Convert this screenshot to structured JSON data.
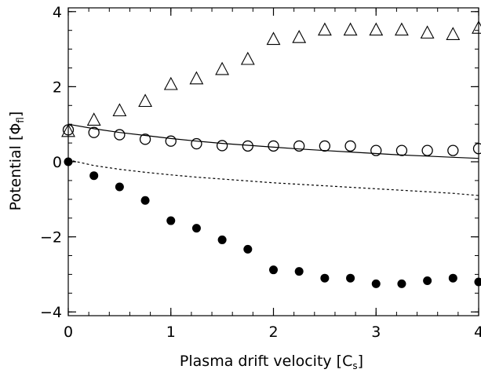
{
  "chart_data": {
    "type": "scatter",
    "xlabel": "Plasma drift velocity [C",
    "xlabel_sub": "s",
    "xlabel_end": "]",
    "ylabel": "Potential [Φ",
    "ylabel_sub": "fl",
    "ylabel_end": "]",
    "xlim": [
      0,
      4
    ],
    "ylim": [
      -4.1,
      4.1
    ],
    "x_ticks": [
      0,
      1,
      2,
      3,
      4
    ],
    "x_tick_labels": [
      "0",
      "1",
      "2",
      "3",
      "4"
    ],
    "y_ticks": [
      -4,
      -2,
      0,
      2,
      4
    ],
    "y_tick_labels": [
      "−4",
      "−2",
      "0",
      "2",
      "4"
    ],
    "x_minor_step": 0.2,
    "y_minor_step": 0.5,
    "grid": false,
    "series": [
      {
        "marker": "triangle",
        "x": [
          0,
          0.25,
          0.5,
          0.75,
          1,
          1.25,
          1.5,
          1.75,
          2,
          2.25,
          2.5,
          2.75,
          3,
          3.25,
          3.5,
          3.75,
          4
        ],
        "y": [
          0.8,
          1.1,
          1.35,
          1.6,
          2.05,
          2.2,
          2.45,
          2.72,
          3.25,
          3.3,
          3.5,
          3.5,
          3.5,
          3.5,
          3.42,
          3.38,
          3.55
        ]
      },
      {
        "marker": "open-circle",
        "x": [
          0,
          0.25,
          0.5,
          0.75,
          1,
          1.25,
          1.5,
          1.75,
          2,
          2.25,
          2.5,
          2.75,
          3,
          3.25,
          3.5,
          3.75,
          4
        ],
        "y": [
          0.85,
          0.78,
          0.72,
          0.6,
          0.55,
          0.48,
          0.43,
          0.42,
          0.42,
          0.42,
          0.42,
          0.42,
          0.3,
          0.3,
          0.3,
          0.3,
          0.35
        ]
      },
      {
        "marker": "filled-circle",
        "x": [
          0,
          0.25,
          0.5,
          0.75,
          1,
          1.25,
          1.5,
          1.75,
          2,
          2.25,
          2.5,
          2.75,
          3,
          3.25,
          3.5,
          3.75,
          4
        ],
        "y": [
          0,
          -0.37,
          -0.67,
          -1.03,
          -1.57,
          -1.77,
          -2.08,
          -2.33,
          -2.88,
          -2.92,
          -3.1,
          -3.1,
          -3.25,
          -3.25,
          -3.17,
          -3.1,
          -3.2
        ]
      },
      {
        "marker": "solid-line",
        "x": [
          0,
          0.25,
          0.5,
          0.75,
          1,
          1.25,
          1.5,
          1.75,
          2,
          2.25,
          2.5,
          2.75,
          3,
          3.25,
          3.5,
          3.75,
          4
        ],
        "y": [
          1.0,
          0.88,
          0.78,
          0.7,
          0.62,
          0.55,
          0.49,
          0.44,
          0.39,
          0.34,
          0.3,
          0.26,
          0.22,
          0.18,
          0.15,
          0.12,
          0.09
        ]
      },
      {
        "marker": "dashed-line",
        "x": [
          0,
          0.25,
          0.5,
          0.75,
          1,
          1.25,
          1.5,
          1.75,
          2,
          2.25,
          2.5,
          2.75,
          3,
          3.25,
          3.5,
          3.75,
          4
        ],
        "y": [
          0.05,
          -0.1,
          -0.2,
          -0.28,
          -0.35,
          -0.41,
          -0.46,
          -0.51,
          -0.56,
          -0.6,
          -0.64,
          -0.68,
          -0.72,
          -0.76,
          -0.8,
          -0.84,
          -0.9
        ]
      }
    ]
  }
}
